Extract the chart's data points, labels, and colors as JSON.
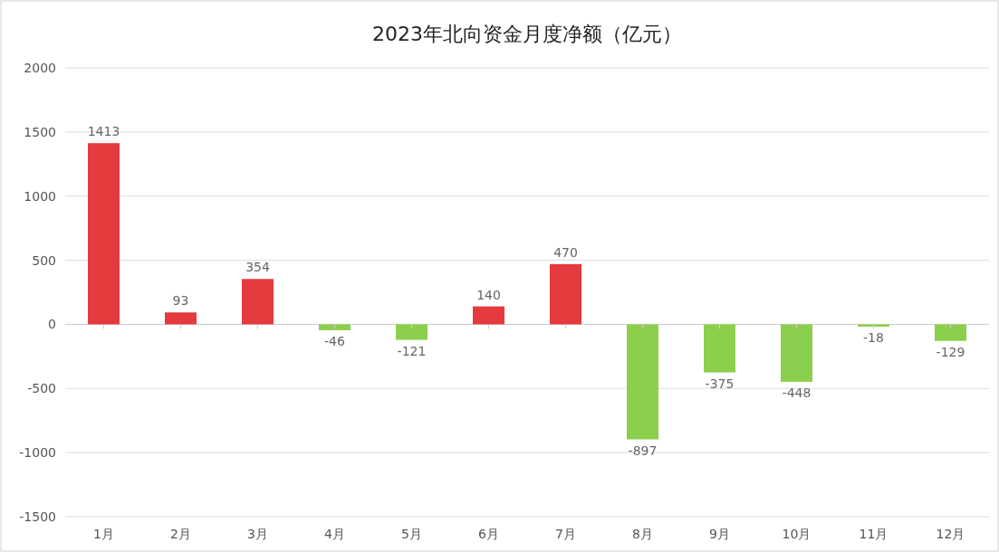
{
  "chart_data": {
    "type": "bar",
    "title": "2023年北向资金月度净额（亿元）",
    "categories": [
      "1月",
      "2月",
      "3月",
      "4月",
      "5月",
      "6月",
      "7月",
      "8月",
      "9月",
      "10月",
      "11月",
      "12月"
    ],
    "values": [
      1413,
      93,
      354,
      -46,
      -121,
      140,
      470,
      -897,
      -375,
      -448,
      -18,
      -129
    ],
    "colors": [
      "#e53a3e",
      "#e53a3e",
      "#e53a3e",
      "#8ccf4d",
      "#8ccf4d",
      "#e53a3e",
      "#e53a3e",
      "#8ccf4d",
      "#8ccf4d",
      "#8ccf4d",
      "#8ccf4d",
      "#8ccf4d"
    ],
    "ylim": [
      -1500,
      2000
    ],
    "yticks": [
      -1500,
      -1000,
      -500,
      0,
      500,
      1000,
      1500,
      2000
    ],
    "grid": "y",
    "data_labels": true
  }
}
